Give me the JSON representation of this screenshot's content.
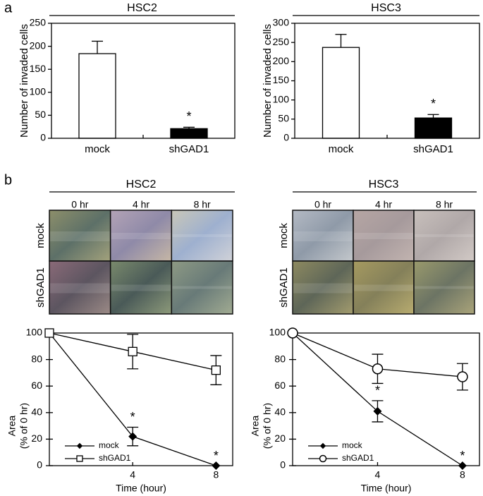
{
  "panel_labels": [
    "a",
    "b"
  ],
  "chart_data": [
    {
      "type": "bar",
      "title": "HSC2",
      "ylabel": "Number of invaded cells",
      "categories": [
        "mock",
        "shGAD1"
      ],
      "values": [
        184,
        21
      ],
      "errors": [
        27,
        3
      ],
      "colors": [
        "#ffffff",
        "#000000"
      ],
      "significance": [
        null,
        "*"
      ],
      "ylim": [
        0,
        250
      ],
      "yticks": [
        0,
        50,
        100,
        150,
        200,
        250
      ]
    },
    {
      "type": "bar",
      "title": "HSC3",
      "ylabel": "Number of invaded cells",
      "categories": [
        "mock",
        "shGAD1"
      ],
      "values": [
        237,
        53
      ],
      "errors": [
        34,
        9
      ],
      "colors": [
        "#ffffff",
        "#000000"
      ],
      "significance": [
        null,
        "*"
      ],
      "ylim": [
        0,
        300
      ],
      "yticks": [
        0,
        50,
        100,
        150,
        200,
        250,
        300
      ]
    },
    {
      "type": "line",
      "ylabel": [
        "Area",
        "(% of 0 hr)"
      ],
      "xlabel": "Time (hour)",
      "x": [
        0,
        4,
        8
      ],
      "xlim": [
        0,
        8.8
      ],
      "xticks": [
        4,
        8
      ],
      "ylim": [
        0,
        100
      ],
      "yticks": [
        0,
        20,
        40,
        60,
        80,
        100
      ],
      "legend": "lower left",
      "series": [
        {
          "name": "mock",
          "color": "#000000",
          "marker": "diamond",
          "values": [
            100,
            22,
            0
          ],
          "errors": [
            null,
            7,
            null
          ],
          "significance": [
            null,
            "*",
            "*"
          ]
        },
        {
          "name": "shGAD1",
          "color": "#000000",
          "marker": "square",
          "values": [
            100,
            86,
            72
          ],
          "errors": [
            null,
            13,
            11
          ],
          "significance": [
            null,
            null,
            null
          ]
        }
      ]
    },
    {
      "type": "line",
      "ylabel": [
        "Area",
        "(% of 0 hr)"
      ],
      "xlabel": "Time (hour)",
      "x": [
        0,
        4,
        8
      ],
      "xlim": [
        0,
        8.8
      ],
      "xticks": [
        4,
        8
      ],
      "ylim": [
        0,
        100
      ],
      "yticks": [
        0,
        20,
        40,
        60,
        80,
        100
      ],
      "legend": "lower left",
      "series": [
        {
          "name": "mock",
          "color": "#000000",
          "marker": "diamond",
          "values": [
            100,
            41,
            0
          ],
          "errors": [
            null,
            8,
            null
          ],
          "significance": [
            null,
            "*",
            "*"
          ]
        },
        {
          "name": "shGAD1",
          "color": "#000000",
          "marker": "circle",
          "values": [
            100,
            73,
            67
          ],
          "errors": [
            null,
            11,
            10
          ],
          "significance": [
            null,
            null,
            null
          ]
        }
      ]
    }
  ],
  "micrographs": [
    {
      "title": "HSC2",
      "columns": [
        "0 hr",
        "4 hr",
        "8 hr"
      ],
      "rows": [
        "mock",
        "shGAD1"
      ]
    },
    {
      "title": "HSC3",
      "columns": [
        "0 hr",
        "4 hr",
        "8 hr"
      ],
      "rows": [
        "mock",
        "shGAD1"
      ]
    }
  ]
}
